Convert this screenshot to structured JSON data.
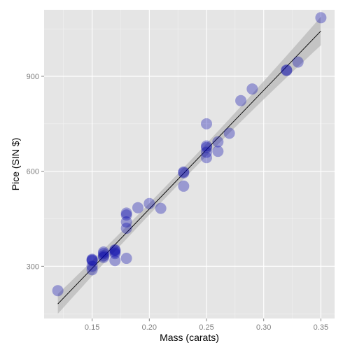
{
  "chart_data": {
    "type": "scatter",
    "xlabel": "Mass (carats)",
    "ylabel": "Pice (SIN $)",
    "xlim": [
      0.108,
      0.362
    ],
    "ylim": [
      135,
      1110
    ],
    "x_ticks": [
      0.15,
      0.2,
      0.25,
      0.3,
      0.35
    ],
    "x_tick_labels": [
      "0.15",
      "0.20",
      "0.25",
      "0.30",
      "0.35"
    ],
    "y_ticks": [
      300,
      600,
      900
    ],
    "y_tick_labels": [
      "300",
      "600",
      "900"
    ],
    "grid": true,
    "points": [
      {
        "x": 0.12,
        "y": 223
      },
      {
        "x": 0.15,
        "y": 289
      },
      {
        "x": 0.15,
        "y": 300
      },
      {
        "x": 0.15,
        "y": 318
      },
      {
        "x": 0.15,
        "y": 320
      },
      {
        "x": 0.15,
        "y": 322
      },
      {
        "x": 0.16,
        "y": 328
      },
      {
        "x": 0.16,
        "y": 333
      },
      {
        "x": 0.16,
        "y": 340
      },
      {
        "x": 0.16,
        "y": 345
      },
      {
        "x": 0.17,
        "y": 318
      },
      {
        "x": 0.17,
        "y": 340
      },
      {
        "x": 0.17,
        "y": 345
      },
      {
        "x": 0.17,
        "y": 350
      },
      {
        "x": 0.17,
        "y": 352
      },
      {
        "x": 0.18,
        "y": 325
      },
      {
        "x": 0.18,
        "y": 420
      },
      {
        "x": 0.18,
        "y": 440
      },
      {
        "x": 0.18,
        "y": 462
      },
      {
        "x": 0.18,
        "y": 468
      },
      {
        "x": 0.19,
        "y": 485
      },
      {
        "x": 0.2,
        "y": 498
      },
      {
        "x": 0.21,
        "y": 483
      },
      {
        "x": 0.23,
        "y": 553
      },
      {
        "x": 0.23,
        "y": 595
      },
      {
        "x": 0.23,
        "y": 598
      },
      {
        "x": 0.25,
        "y": 643
      },
      {
        "x": 0.25,
        "y": 660
      },
      {
        "x": 0.25,
        "y": 675
      },
      {
        "x": 0.25,
        "y": 680
      },
      {
        "x": 0.25,
        "y": 750
      },
      {
        "x": 0.26,
        "y": 663
      },
      {
        "x": 0.26,
        "y": 693
      },
      {
        "x": 0.27,
        "y": 720
      },
      {
        "x": 0.28,
        "y": 823
      },
      {
        "x": 0.29,
        "y": 860
      },
      {
        "x": 0.32,
        "y": 918
      },
      {
        "x": 0.32,
        "y": 920
      },
      {
        "x": 0.33,
        "y": 945
      },
      {
        "x": 0.35,
        "y": 1085
      }
    ],
    "fit": {
      "x_start": 0.12,
      "y_start": 181,
      "x_end": 0.35,
      "y_end": 1043
    },
    "colors": {
      "panel": "#e5e5e5",
      "grid_major": "#ffffff",
      "grid_minor": "#f2f2f2",
      "point_fill": "#0000aa",
      "fit_line": "#000000",
      "band": "#b8b8b8",
      "tick_label": "#7f7f7f"
    }
  }
}
